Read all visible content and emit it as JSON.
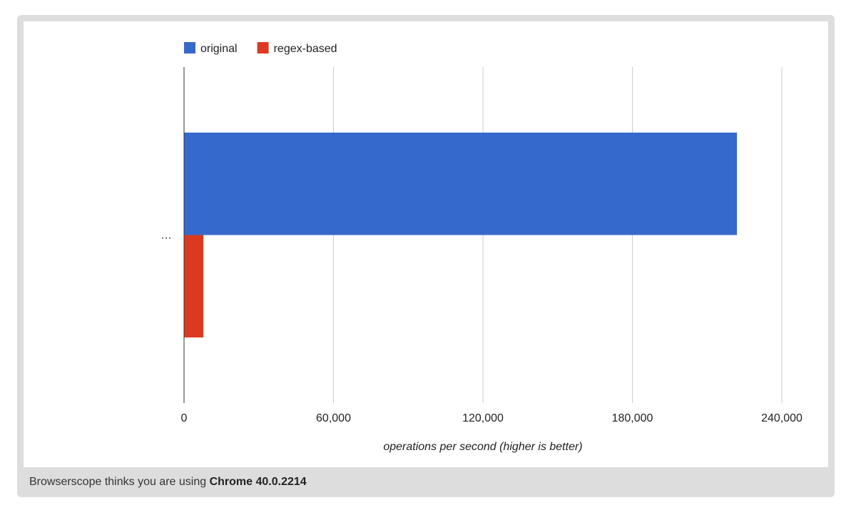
{
  "chart_data": {
    "type": "bar",
    "orientation": "horizontal",
    "categories": [
      "…"
    ],
    "series": [
      {
        "name": "original",
        "values": [
          222000
        ],
        "color": "#3669cc"
      },
      {
        "name": "regex-based",
        "values": [
          7800
        ],
        "color": "#dc3a20"
      }
    ],
    "xlabel": "operations per second (higher is better)",
    "xlim": [
      0,
      240000
    ],
    "xticks": [
      0,
      60000,
      120000,
      180000,
      240000
    ],
    "xtick_labels": [
      "0",
      "60,000",
      "120,000",
      "180,000",
      "240,000"
    ],
    "grid": true,
    "legend_position": "top-left"
  },
  "footer": {
    "prefix": "Browserscope thinks you are using ",
    "browser": "Chrome 40.0.2214"
  }
}
